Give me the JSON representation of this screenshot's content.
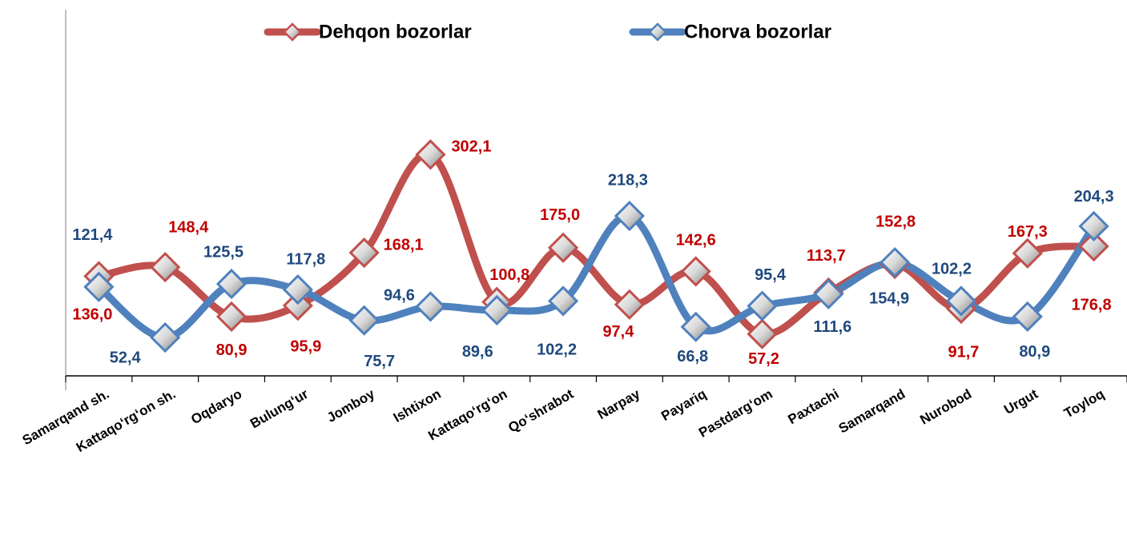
{
  "chart_data": {
    "type": "line",
    "categories": [
      "Samarqand sh.",
      "Kattaqo‘rg‘on  sh.",
      "Oqdaryo",
      "Bulung‘ur",
      "Jomboy",
      "Ishtixon",
      "Kattaqo‘rg‘on",
      "Qo‘shrabot",
      "Narpay",
      "Payariq",
      "Pastdarg‘om",
      "Paxtachi",
      "Samarqand",
      "Nurobod",
      "Urgut",
      "Toyloq"
    ],
    "series": [
      {
        "name": "Dehqon bozorlar",
        "color": "#c0504d",
        "label_color": "#c00000",
        "values": [
          136.0,
          148.4,
          80.9,
          95.9,
          168.1,
          302.1,
          100.8,
          175.0,
          97.4,
          142.6,
          57.2,
          113.7,
          152.8,
          91.7,
          167.3,
          176.8
        ],
        "value_labels": [
          "136,0",
          "148,4",
          "80,9",
          "95,9",
          "168,1",
          "302,1",
          "100,8",
          "175,0",
          "97,4",
          "142,6",
          "57,2",
          "113,7",
          "152,8",
          "91,7",
          "167,3",
          "176,8"
        ]
      },
      {
        "name": "Chorva bozorlar",
        "color": "#4f81bd",
        "label_color": "#1f497d",
        "values": [
          121.4,
          52.4,
          125.5,
          117.8,
          75.7,
          94.6,
          89.6,
          102.2,
          218.3,
          66.8,
          95.4,
          111.6,
          154.9,
          102.2,
          80.9,
          204.3
        ],
        "value_labels": [
          "121,4",
          "52,4",
          "125,5",
          "117,8",
          "75,7",
          "94,6",
          "89,6",
          "102,2",
          "218,3",
          "66,8",
          "95,4",
          "111,6",
          "154,9",
          "102,2",
          "80,9",
          "204,3"
        ]
      }
    ],
    "ylim": [
      0,
      500
    ],
    "smooth": true,
    "legend": "top"
  }
}
